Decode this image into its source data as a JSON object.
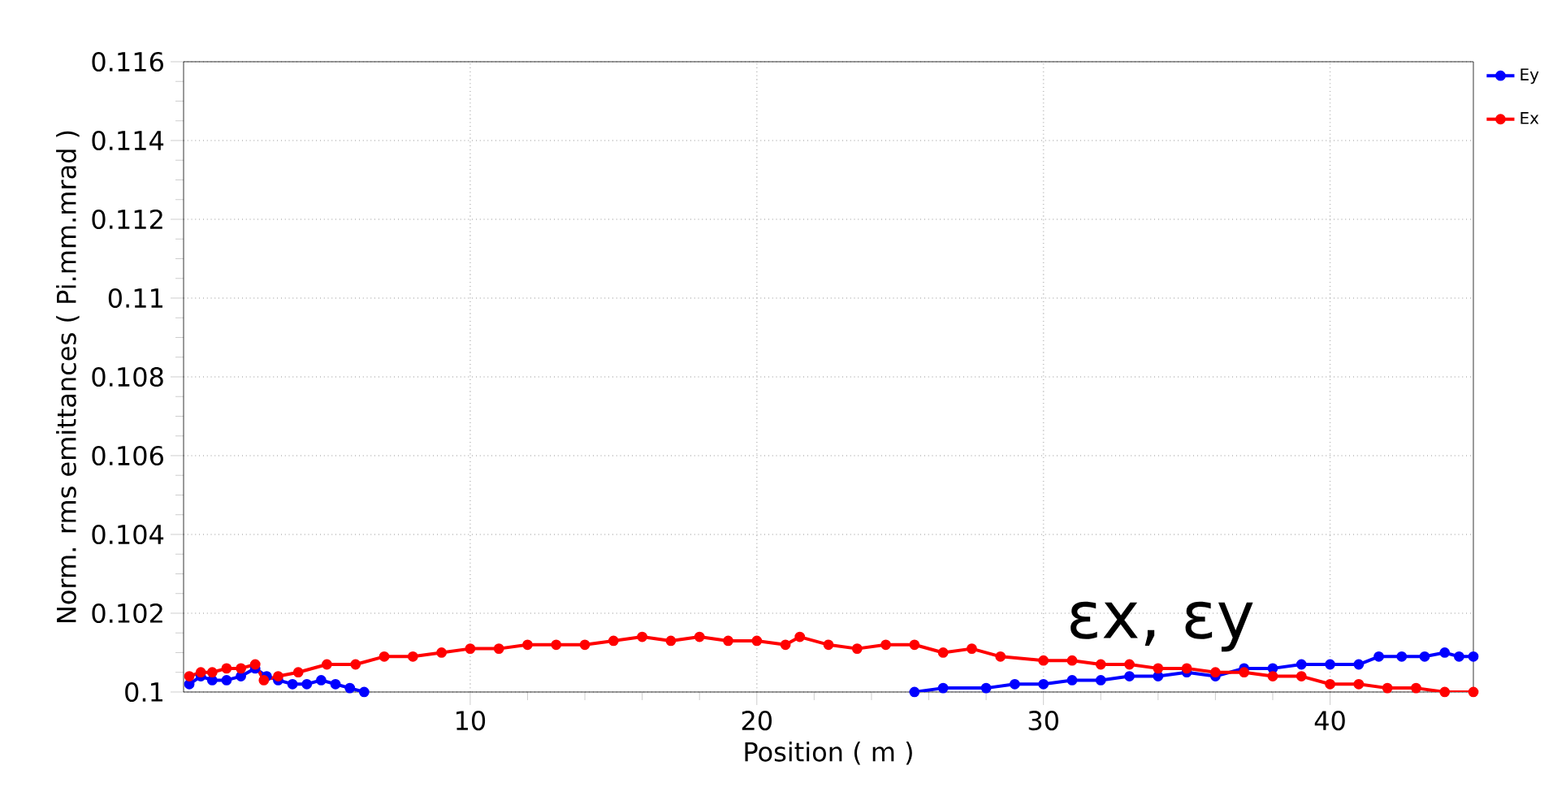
{
  "chart_data": {
    "type": "line",
    "xlabel": "Position ( m )",
    "ylabel": "Norm. rms emittances ( Pi.mm.mrad )",
    "annotations": [
      "εx, εy"
    ],
    "series": [
      {
        "name": "Ey",
        "color": "#0000ff",
        "x": [
          0.2,
          0.6,
          1.0,
          1.5,
          2.0,
          2.5,
          2.9,
          3.3,
          3.8,
          4.3,
          4.8,
          5.3,
          5.8,
          6.3,
          15,
          25.5,
          26.5,
          28,
          29,
          30,
          31,
          32,
          33,
          34,
          35,
          36,
          37,
          38,
          39,
          40,
          41,
          41.7,
          42.5,
          43.3,
          44,
          44.5,
          45
        ],
        "values": [
          0.1002,
          0.1004,
          0.1003,
          0.1003,
          0.1004,
          0.1006,
          0.1004,
          0.1003,
          0.1002,
          0.1002,
          0.1003,
          0.1002,
          0.1001,
          0.1,
          null,
          0.1,
          0.1001,
          0.1001,
          0.1002,
          0.1002,
          0.1003,
          0.1003,
          0.1004,
          0.1004,
          0.1005,
          0.1004,
          0.1006,
          0.1006,
          0.1007,
          0.1007,
          0.1007,
          0.1009,
          0.1009,
          0.1009,
          0.101,
          0.1009,
          0.1009
        ]
      },
      {
        "name": "Ex",
        "color": "#ff0000",
        "x": [
          0.2,
          0.6,
          1.0,
          1.5,
          2.0,
          2.5,
          2.8,
          3.3,
          4,
          5,
          6,
          7,
          8,
          9,
          10,
          11,
          12,
          13,
          14,
          15,
          16,
          17,
          18,
          19,
          20,
          21,
          21.5,
          22.5,
          23.5,
          24.5,
          25.5,
          26.5,
          27.5,
          28.5,
          30,
          31,
          32,
          33,
          34,
          35,
          36,
          37,
          38,
          39,
          40,
          41,
          42,
          43,
          44,
          45
        ],
        "values": [
          0.1004,
          0.1005,
          0.1005,
          0.1006,
          0.1006,
          0.1007,
          0.1003,
          0.1004,
          0.1005,
          0.1007,
          0.1007,
          0.1009,
          0.1009,
          0.101,
          0.1011,
          0.1011,
          0.1012,
          0.1012,
          0.1012,
          0.1013,
          0.1014,
          0.1013,
          0.1014,
          0.1013,
          0.1013,
          0.1012,
          0.1014,
          0.1012,
          0.1011,
          0.1012,
          0.1012,
          0.101,
          0.1011,
          0.1009,
          0.1008,
          0.1008,
          0.1007,
          0.1007,
          0.1006,
          0.1006,
          0.1005,
          0.1005,
          0.1004,
          0.1004,
          0.1002,
          0.1002,
          0.1001,
          0.1001,
          0.1,
          0.1
        ]
      }
    ],
    "xlim": [
      0,
      45
    ],
    "ylim": [
      0.1,
      0.116
    ],
    "xticks": [
      10,
      20,
      30,
      40
    ],
    "yticks": [
      0.1,
      0.102,
      0.104,
      0.106,
      0.108,
      0.11,
      0.112,
      0.114,
      0.116
    ],
    "grid": true,
    "legend": "top right",
    "marker": "circle",
    "line_style": "solid"
  }
}
